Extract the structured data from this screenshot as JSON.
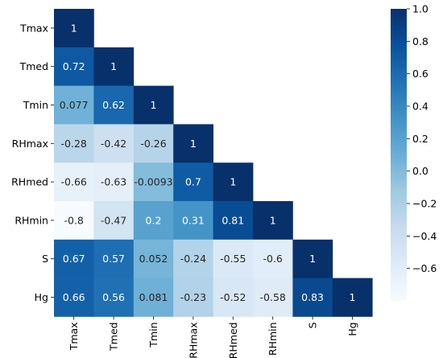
{
  "chart_data": {
    "type": "heatmap",
    "variables": [
      "Tmax",
      "Tmed",
      "Tmin",
      "RHmax",
      "RHmed",
      "RHmin",
      "S",
      "Hg"
    ],
    "matrix_lower": [
      [
        1
      ],
      [
        0.72,
        1
      ],
      [
        0.077,
        0.62,
        1
      ],
      [
        -0.28,
        -0.42,
        -0.26,
        1
      ],
      [
        -0.66,
        -0.63,
        -0.0093,
        0.7,
        1
      ],
      [
        -0.8,
        -0.47,
        0.2,
        0.31,
        0.81,
        1
      ],
      [
        0.67,
        0.57,
        0.052,
        -0.24,
        -0.55,
        -0.6,
        1
      ],
      [
        0.66,
        0.56,
        0.081,
        -0.23,
        -0.52,
        -0.58,
        0.83,
        1
      ]
    ],
    "cell_labels": [
      [
        "1"
      ],
      [
        "0.72",
        "1"
      ],
      [
        "0.077",
        "0.62",
        "1"
      ],
      [
        "-0.28",
        "-0.42",
        "-0.26",
        "1"
      ],
      [
        "-0.66",
        "-0.63",
        "-0.0093",
        "0.7",
        "1"
      ],
      [
        "-0.8",
        "-0.47",
        "0.2",
        "0.31",
        "0.81",
        "1"
      ],
      [
        "0.67",
        "0.57",
        "0.052",
        "-0.24",
        "-0.55",
        "-0.6",
        "1"
      ],
      [
        "0.66",
        "0.56",
        "0.081",
        "-0.23",
        "-0.52",
        "-0.58",
        "0.83",
        "1"
      ]
    ],
    "colorscale": "Blues",
    "vmin": -0.8,
    "vmax": 1.0,
    "colorbar_ticks": [
      "1.0",
      "0.8",
      "0.6",
      "0.4",
      "0.2",
      "0.0",
      "−0.2",
      "−0.4",
      "−0.6"
    ],
    "colorbar_tick_values": [
      1.0,
      0.8,
      0.6,
      0.4,
      0.2,
      0.0,
      -0.2,
      -0.4,
      -0.6
    ],
    "title": "",
    "xlabel": "",
    "ylabel": ""
  }
}
